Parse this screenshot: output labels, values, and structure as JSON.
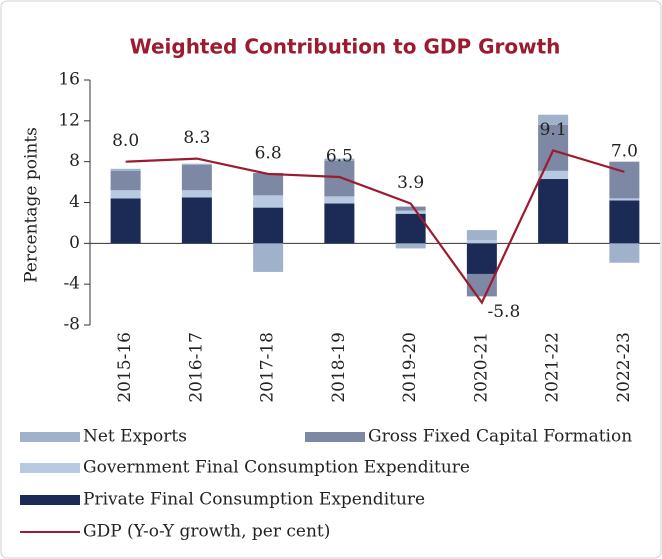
{
  "chart_data": {
    "type": "bar",
    "stacked": true,
    "title": "Weighted Contribution to GDP Growth",
    "y_label": "Percentage points",
    "categories": [
      "2015-16",
      "2016-17",
      "2017-18",
      "2018-19",
      "2019-20",
      "2020-21",
      "2021-22",
      "2022-23"
    ],
    "ylim": [
      -8,
      16
    ],
    "yticks": [
      -8,
      -4,
      0,
      4,
      8,
      12,
      16
    ],
    "series": [
      {
        "name": "Private Final Consumption Expenditure",
        "type": "bar",
        "color": "#1c2b55",
        "values": [
          4.4,
          4.5,
          3.5,
          3.9,
          2.9,
          -3.0,
          6.3,
          4.2
        ]
      },
      {
        "name": "Government Final Consumption Expenditure",
        "type": "bar",
        "color": "#b8cae1",
        "values": [
          0.8,
          0.7,
          1.2,
          0.7,
          0.3,
          0.3,
          0.8,
          0.2
        ]
      },
      {
        "name": "Gross Fixed Capital Formation",
        "type": "bar",
        "color": "#7d89a4",
        "values": [
          1.9,
          2.5,
          2.2,
          3.5,
          0.4,
          -2.2,
          4.5,
          3.6
        ]
      },
      {
        "name": "Net Exports",
        "type": "bar",
        "color": "#a0b1cc",
        "values": [
          0.2,
          0.1,
          -2.8,
          0.2,
          -0.5,
          1.0,
          1.0,
          -1.9
        ]
      },
      {
        "name": "GDP (Y-o-Y growth, per cent)",
        "type": "line",
        "color": "#9b1b30",
        "values": [
          8.0,
          8.3,
          6.8,
          6.5,
          3.9,
          -5.8,
          9.1,
          7.0
        ],
        "value_labels": [
          "8.0",
          "8.3",
          "6.8",
          "6.5",
          "3.9",
          "-5.8",
          "9.1",
          "7.0"
        ]
      }
    ],
    "legend_order": [
      3,
      2,
      1,
      0,
      4
    ]
  }
}
